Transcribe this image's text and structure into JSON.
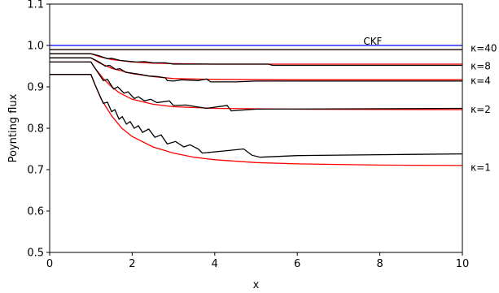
{
  "chart_data": {
    "type": "line",
    "xlabel": "x",
    "ylabel": "Poynting flux",
    "xlim": [
      0,
      10
    ],
    "ylim": [
      0.5,
      1.1
    ],
    "xticks": [
      "0",
      "2",
      "4",
      "6",
      "8",
      "10"
    ],
    "yticks": [
      "0.5",
      "0.6",
      "0.7",
      "0.8",
      "0.9",
      "1.0",
      "1.1"
    ],
    "grid": false,
    "series": [
      {
        "name": "CKF",
        "color": "#0000ff",
        "points": [
          [
            0,
            1.0
          ],
          [
            10,
            1.0
          ]
        ]
      },
      {
        "name": "κ=40",
        "color": "#ff0000",
        "points": [
          [
            0,
            0.99
          ],
          [
            1,
            0.99
          ],
          [
            10,
            0.99
          ]
        ]
      },
      {
        "name": "",
        "color": "#000000",
        "points": [
          [
            0,
            0.99
          ],
          [
            1,
            0.99
          ],
          [
            1.5,
            0.99
          ],
          [
            2.0,
            0.99
          ],
          [
            2.5,
            0.99
          ],
          [
            10,
            0.99
          ]
        ]
      },
      {
        "name": "κ=8",
        "color": "#ff0000",
        "points": [
          [
            0,
            0.98
          ],
          [
            1,
            0.98
          ],
          [
            1.2,
            0.973
          ],
          [
            1.5,
            0.966
          ],
          [
            2.0,
            0.96
          ],
          [
            2.5,
            0.957
          ],
          [
            3,
            0.956
          ],
          [
            4,
            0.955
          ],
          [
            6,
            0.955
          ],
          [
            10,
            0.955
          ]
        ]
      },
      {
        "name": "",
        "color": "#000000",
        "points": [
          [
            0,
            0.98
          ],
          [
            1,
            0.98
          ],
          [
            1.2,
            0.975
          ],
          [
            1.4,
            0.968
          ],
          [
            1.5,
            0.969
          ],
          [
            1.7,
            0.964
          ],
          [
            1.9,
            0.962
          ],
          [
            2.1,
            0.96
          ],
          [
            2.3,
            0.961
          ],
          [
            2.5,
            0.958
          ],
          [
            2.8,
            0.958
          ],
          [
            3.0,
            0.955
          ],
          [
            4.0,
            0.955
          ],
          [
            5.3,
            0.955
          ],
          [
            5.4,
            0.952
          ],
          [
            10,
            0.952
          ]
        ]
      },
      {
        "name": "κ=4",
        "color": "#ff0000",
        "points": [
          [
            0,
            0.97
          ],
          [
            1,
            0.97
          ],
          [
            1.2,
            0.958
          ],
          [
            1.5,
            0.945
          ],
          [
            2.0,
            0.932
          ],
          [
            2.5,
            0.925
          ],
          [
            3,
            0.92
          ],
          [
            4,
            0.918
          ],
          [
            6,
            0.917
          ],
          [
            10,
            0.917
          ]
        ]
      },
      {
        "name": "",
        "color": "#000000",
        "points": [
          [
            0,
            0.97
          ],
          [
            1,
            0.97
          ],
          [
            1.2,
            0.96
          ],
          [
            1.35,
            0.95
          ],
          [
            1.45,
            0.952
          ],
          [
            1.6,
            0.942
          ],
          [
            1.7,
            0.944
          ],
          [
            1.85,
            0.935
          ],
          [
            2.0,
            0.933
          ],
          [
            2.2,
            0.93
          ],
          [
            2.4,
            0.926
          ],
          [
            2.6,
            0.925
          ],
          [
            2.8,
            0.922
          ],
          [
            2.85,
            0.915
          ],
          [
            3.0,
            0.914
          ],
          [
            3.2,
            0.917
          ],
          [
            3.6,
            0.915
          ],
          [
            3.8,
            0.919
          ],
          [
            3.9,
            0.912
          ],
          [
            4.5,
            0.912
          ],
          [
            5.0,
            0.914
          ],
          [
            10,
            0.914
          ]
        ]
      },
      {
        "name": "κ=2",
        "color": "#ff0000",
        "points": [
          [
            0,
            0.96
          ],
          [
            1,
            0.96
          ],
          [
            1.1,
            0.945
          ],
          [
            1.3,
            0.92
          ],
          [
            1.5,
            0.9
          ],
          [
            1.7,
            0.885
          ],
          [
            2.0,
            0.87
          ],
          [
            2.5,
            0.858
          ],
          [
            3.0,
            0.852
          ],
          [
            4.0,
            0.848
          ],
          [
            6.0,
            0.846
          ],
          [
            10,
            0.845
          ]
        ]
      },
      {
        "name": "",
        "color": "#000000",
        "points": [
          [
            0,
            0.96
          ],
          [
            1,
            0.96
          ],
          [
            1.1,
            0.945
          ],
          [
            1.3,
            0.915
          ],
          [
            1.4,
            0.918
          ],
          [
            1.55,
            0.895
          ],
          [
            1.65,
            0.9
          ],
          [
            1.8,
            0.885
          ],
          [
            1.9,
            0.888
          ],
          [
            2.05,
            0.872
          ],
          [
            2.15,
            0.876
          ],
          [
            2.3,
            0.866
          ],
          [
            2.45,
            0.87
          ],
          [
            2.6,
            0.862
          ],
          [
            2.9,
            0.866
          ],
          [
            3.0,
            0.855
          ],
          [
            3.3,
            0.856
          ],
          [
            3.8,
            0.848
          ],
          [
            4.3,
            0.855
          ],
          [
            4.4,
            0.842
          ],
          [
            5.0,
            0.846
          ],
          [
            10,
            0.848
          ]
        ]
      },
      {
        "name": "κ=1",
        "color": "#ff0000",
        "points": [
          [
            0,
            0.93
          ],
          [
            1,
            0.93
          ],
          [
            1.1,
            0.905
          ],
          [
            1.25,
            0.87
          ],
          [
            1.5,
            0.83
          ],
          [
            1.75,
            0.8
          ],
          [
            2.0,
            0.78
          ],
          [
            2.5,
            0.755
          ],
          [
            3.0,
            0.74
          ],
          [
            3.5,
            0.73
          ],
          [
            4.0,
            0.724
          ],
          [
            5.0,
            0.717
          ],
          [
            6.0,
            0.714
          ],
          [
            8.0,
            0.711
          ],
          [
            10,
            0.71
          ]
        ]
      },
      {
        "name": "",
        "color": "#000000",
        "points": [
          [
            0,
            0.93
          ],
          [
            1,
            0.93
          ],
          [
            1.1,
            0.905
          ],
          [
            1.3,
            0.86
          ],
          [
            1.4,
            0.863
          ],
          [
            1.5,
            0.84
          ],
          [
            1.58,
            0.845
          ],
          [
            1.68,
            0.822
          ],
          [
            1.76,
            0.828
          ],
          [
            1.86,
            0.81
          ],
          [
            1.95,
            0.816
          ],
          [
            2.05,
            0.8
          ],
          [
            2.15,
            0.806
          ],
          [
            2.25,
            0.79
          ],
          [
            2.4,
            0.798
          ],
          [
            2.55,
            0.778
          ],
          [
            2.7,
            0.784
          ],
          [
            2.85,
            0.762
          ],
          [
            3.05,
            0.768
          ],
          [
            3.25,
            0.755
          ],
          [
            3.4,
            0.76
          ],
          [
            3.6,
            0.75
          ],
          [
            3.7,
            0.74
          ],
          [
            4.2,
            0.745
          ],
          [
            4.7,
            0.75
          ],
          [
            4.9,
            0.735
          ],
          [
            5.1,
            0.73
          ],
          [
            6.0,
            0.734
          ],
          [
            8.0,
            0.736
          ],
          [
            10,
            0.738
          ]
        ]
      }
    ],
    "annotations": [
      {
        "text": "CKF",
        "x": 7.6,
        "y": 1.01
      },
      {
        "text": "κ=40",
        "x": 10.2,
        "y": 0.993
      },
      {
        "text": "κ=8",
        "x": 10.2,
        "y": 0.95
      },
      {
        "text": "κ=4",
        "x": 10.2,
        "y": 0.915
      },
      {
        "text": "κ=2",
        "x": 10.2,
        "y": 0.845
      },
      {
        "text": "κ=1",
        "x": 10.2,
        "y": 0.705
      }
    ]
  }
}
